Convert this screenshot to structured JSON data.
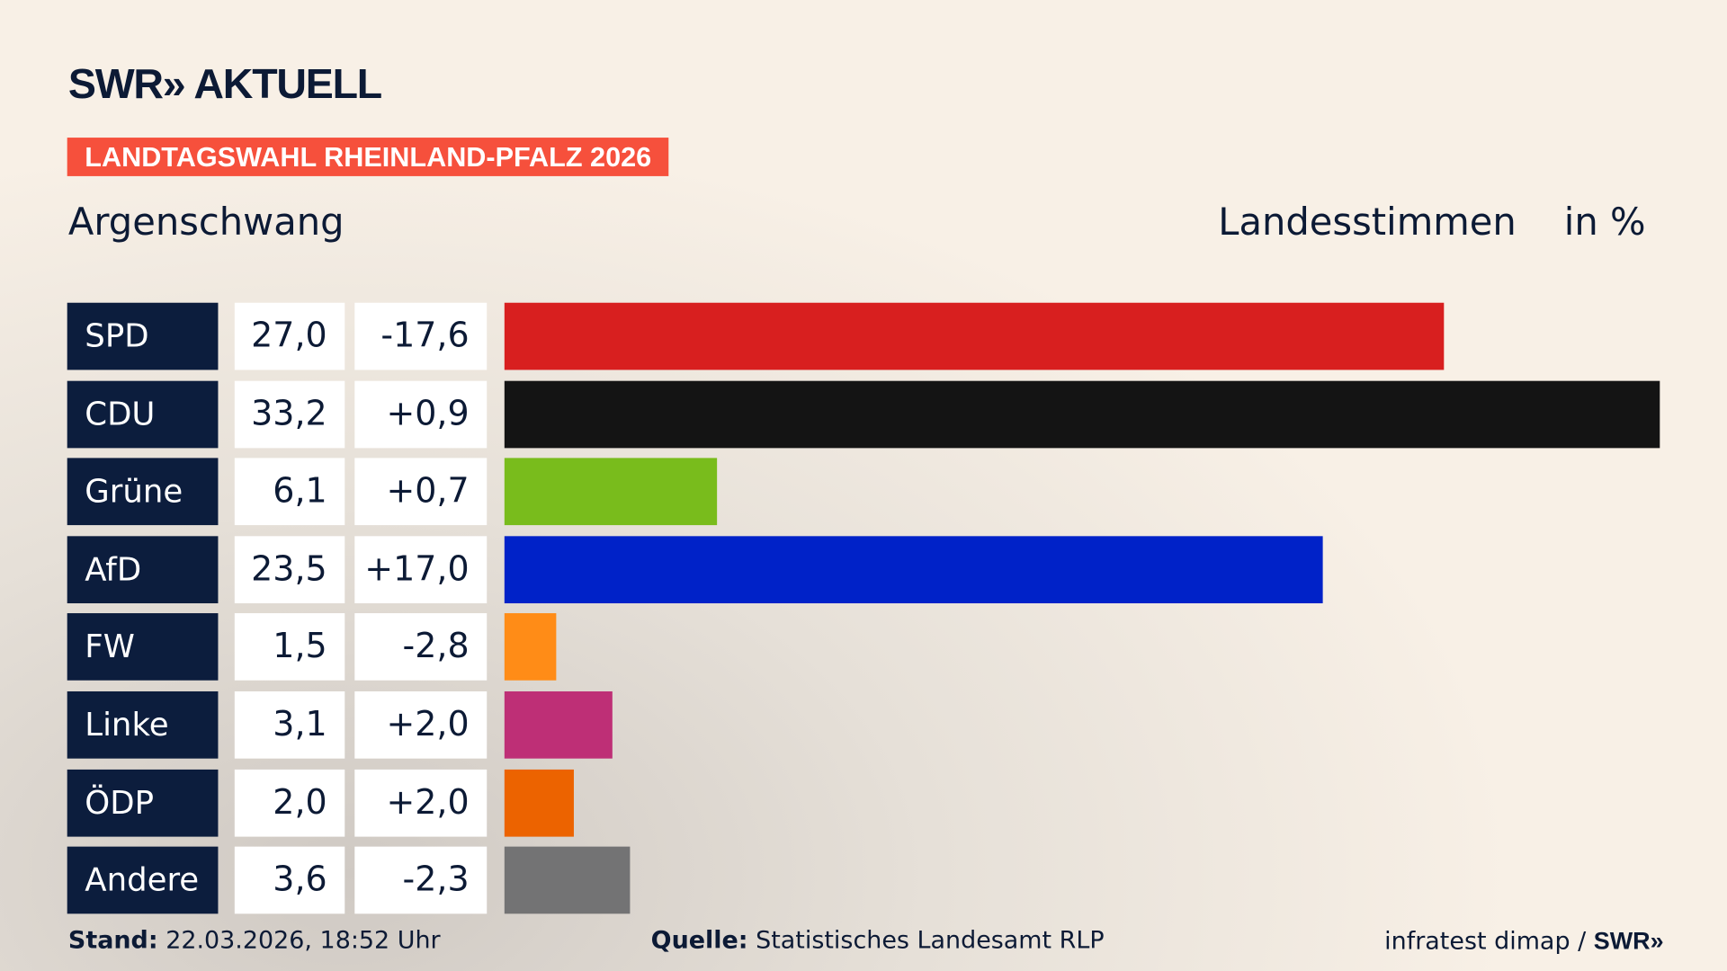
{
  "header": {
    "logo": "SWR» AKTUELL",
    "tag": "LANDTAGSWAHL RHEINLAND-PFALZ 2026",
    "region": "Argenschwang",
    "value_title": "Landesstimmen",
    "unit": "in %"
  },
  "chart_data": {
    "type": "bar",
    "orientation": "horizontal",
    "categories": [
      "SPD",
      "CDU",
      "Grüne",
      "AfD",
      "FW",
      "Linke",
      "ÖDP",
      "Andere"
    ],
    "values": [
      27.0,
      33.2,
      6.1,
      23.5,
      1.5,
      3.1,
      2.0,
      3.6
    ],
    "value_labels": [
      "27,0",
      "33,2",
      "6,1",
      "23,5",
      "1,5",
      "3,1",
      "2,0",
      "3,6"
    ],
    "diff_labels": [
      "-17,6",
      "+0,9",
      "+0,7",
      "+17,0",
      "-2,8",
      "+2,0",
      "+2,0",
      "-2,3"
    ],
    "diffs": [
      -17.6,
      0.9,
      0.7,
      17.0,
      -2.8,
      2.0,
      2.0,
      -2.3
    ],
    "colors": [
      "#d81f1f",
      "#141414",
      "#79bc1c",
      "#0022c8",
      "#ff8c17",
      "#be2f76",
      "#ec6300",
      "#737374"
    ],
    "xlim": [
      0,
      33.2
    ],
    "grid": false
  },
  "footer": {
    "stand_label": "Stand:",
    "stand": "22.03.2026, 18:52 Uhr",
    "source_label": "Quelle:",
    "source": "Statistisches Landesamt RLP",
    "credit": "infratest dimap / ",
    "credit_logo": "SWR»"
  }
}
